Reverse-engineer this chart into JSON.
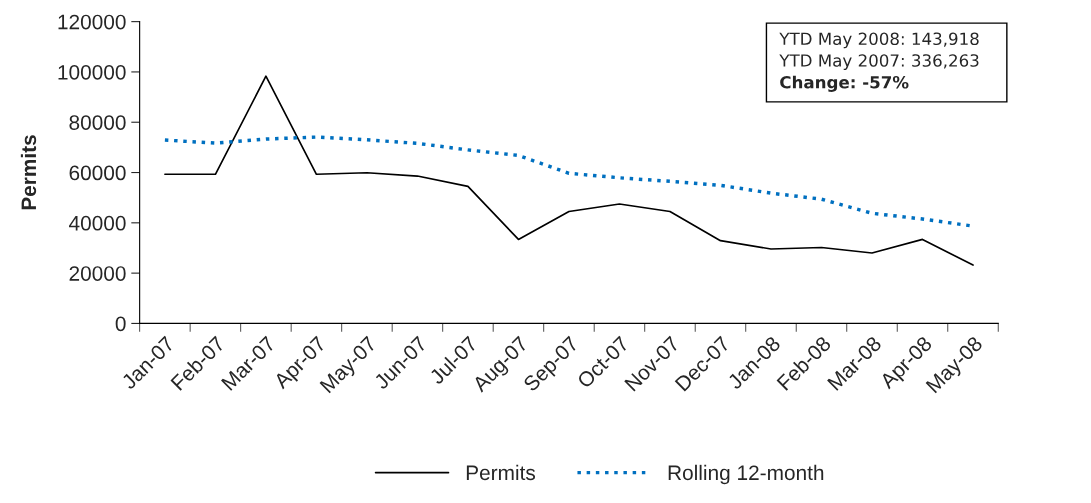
{
  "chart_data": {
    "type": "line",
    "ylabel": "Permits",
    "categories": [
      "Jan-07",
      "Feb-07",
      "Mar-07",
      "Apr-07",
      "May-07",
      "Jun-07",
      "Jul-07",
      "Aug-07",
      "Sep-07",
      "Oct-07",
      "Nov-07",
      "Dec-07",
      "Jan-08",
      "Feb-08",
      "Mar-08",
      "Apr-08",
      "May-08"
    ],
    "series": [
      {
        "name": "Permits",
        "color": "#000000",
        "line_style": "solid",
        "values": [
          59300,
          59300,
          98300,
          59300,
          59900,
          58600,
          54500,
          33400,
          44500,
          47500,
          44500,
          32900,
          29600,
          30200,
          28000,
          33400,
          23200
        ]
      },
      {
        "name": "Rolling 12-month",
        "color": "#0070c0",
        "line_style": "dotted",
        "values": [
          72900,
          71700,
          73300,
          74100,
          73000,
          71600,
          69000,
          66800,
          59700,
          57900,
          56500,
          54900,
          51800,
          49400,
          43800,
          41500,
          38700
        ]
      }
    ],
    "ylim": [
      0,
      120000
    ],
    "yticks": [
      0,
      20000,
      40000,
      60000,
      80000,
      100000,
      120000
    ],
    "grid": false,
    "legend": "bottom",
    "annotations": [
      "YTD May 2008: 143,918",
      "YTD May 2007: 336,263",
      "Change: -57%"
    ]
  }
}
